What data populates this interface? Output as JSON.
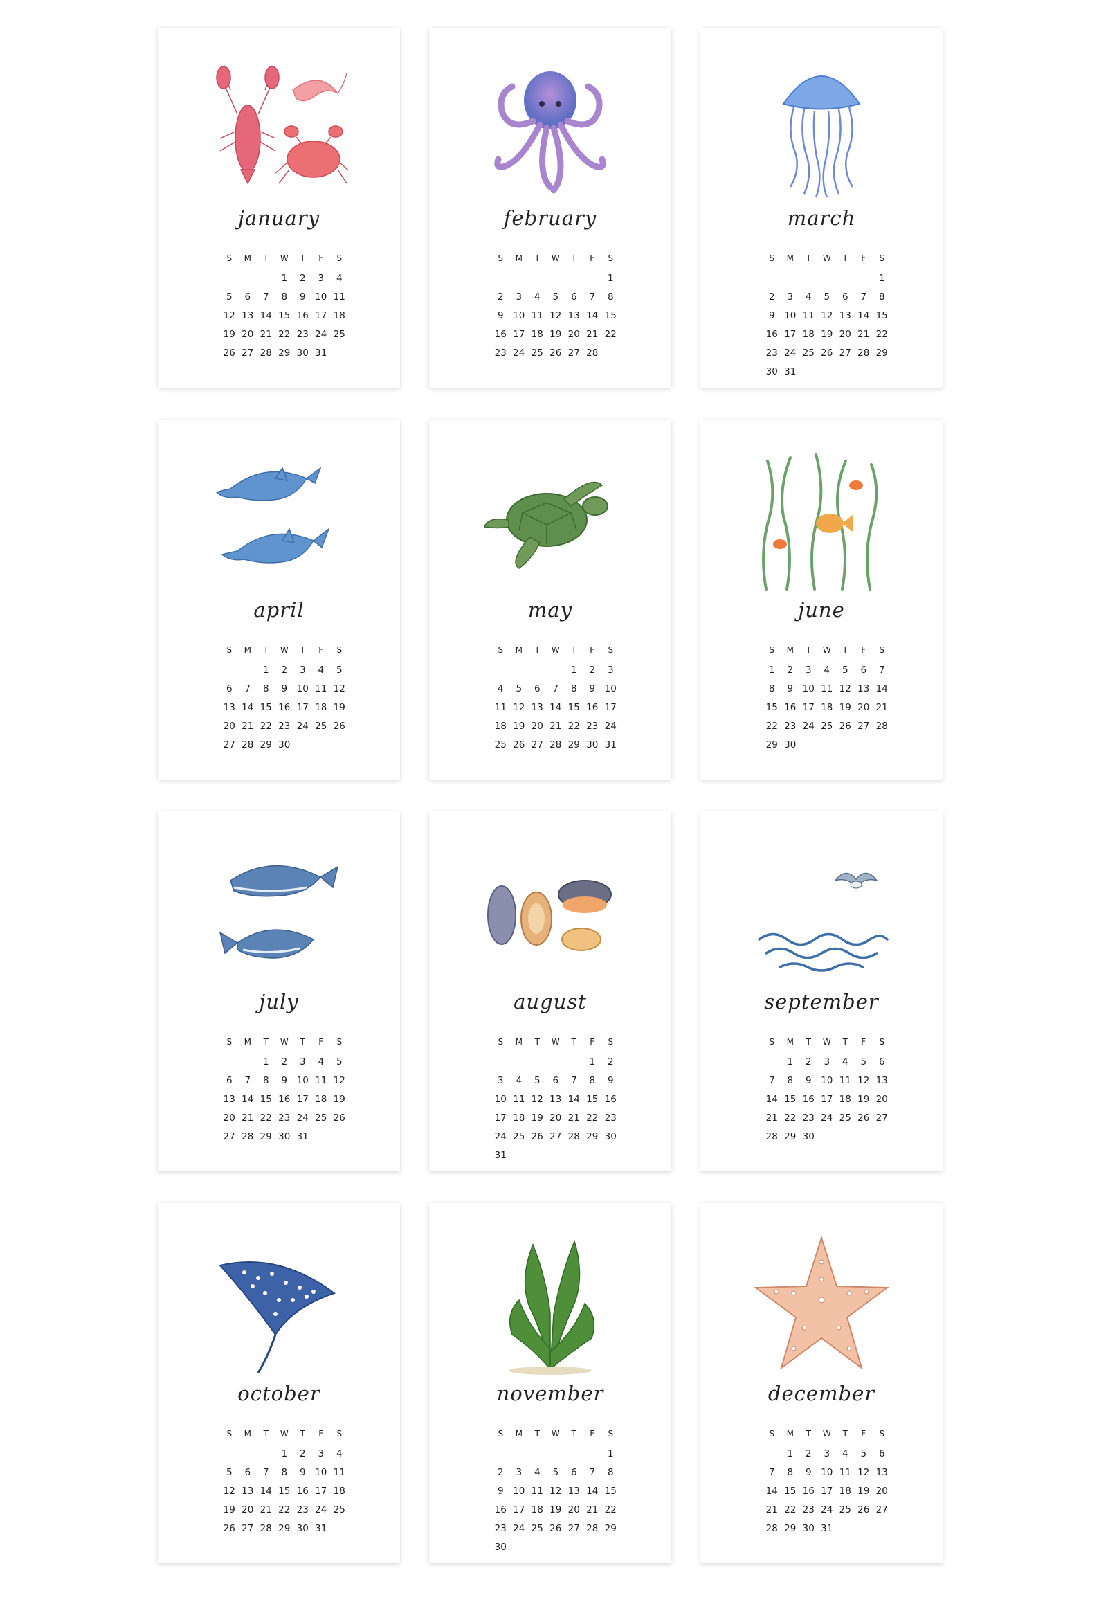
{
  "weekdays": [
    "S",
    "M",
    "T",
    "W",
    "T",
    "F",
    "S"
  ],
  "months": [
    {
      "name": "january",
      "start": 3,
      "days": 31,
      "illustration": "lobster-shrimp-crab-illustration"
    },
    {
      "name": "february",
      "start": 6,
      "days": 28,
      "illustration": "octopus-illustration"
    },
    {
      "name": "march",
      "start": 6,
      "days": 31,
      "illustration": "jellyfish-illustration"
    },
    {
      "name": "april",
      "start": 2,
      "days": 30,
      "illustration": "dolphins-illustration"
    },
    {
      "name": "may",
      "start": 4,
      "days": 31,
      "illustration": "sea-turtle-illustration"
    },
    {
      "name": "june",
      "start": 0,
      "days": 30,
      "illustration": "seaweed-fish-illustration"
    },
    {
      "name": "july",
      "start": 2,
      "days": 31,
      "illustration": "whales-illustration"
    },
    {
      "name": "august",
      "start": 5,
      "days": 31,
      "illustration": "shells-illustration"
    },
    {
      "name": "september",
      "start": 1,
      "days": 30,
      "illustration": "seagull-waves-illustration"
    },
    {
      "name": "october",
      "start": 3,
      "days": 31,
      "illustration": "stingray-illustration"
    },
    {
      "name": "november",
      "start": 6,
      "days": 30,
      "illustration": "kelp-illustration"
    },
    {
      "name": "december",
      "start": 1,
      "days": 31,
      "illustration": "starfish-illustration"
    }
  ]
}
